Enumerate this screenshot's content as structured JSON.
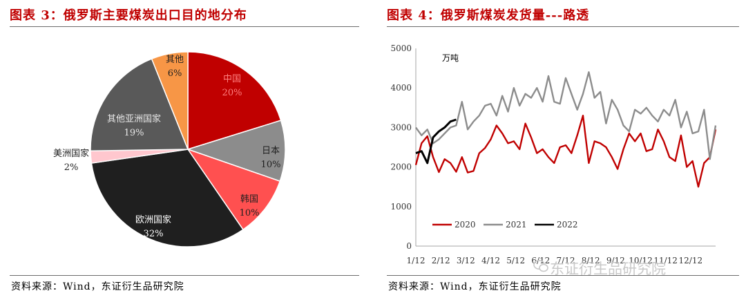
{
  "left": {
    "title": "图表 3：俄罗斯主要煤炭出口目的地分布",
    "source": "资料来源：Wind，东证衍生品研究院"
  },
  "right": {
    "title": "图表 4：俄罗斯煤炭发货量---路透",
    "source": "资料来源：Wind，东证衍生品研究院",
    "unit": "万吨"
  },
  "watermark": "东证衍生品研究院",
  "chart_data": [
    {
      "type": "pie",
      "slices": [
        {
          "label": "中国",
          "value": 20,
          "pct": "20%",
          "color": "#c00000"
        },
        {
          "label": "日本",
          "value": 10,
          "pct": "10%",
          "color": "#8c8c8c"
        },
        {
          "label": "韩国",
          "value": 10,
          "pct": "10%",
          "color": "#ff5050"
        },
        {
          "label": "欧洲国家",
          "value": 32,
          "pct": "32%",
          "color": "#1f1f1f"
        },
        {
          "label": "美洲国家",
          "value": 2,
          "pct": "2%",
          "color": "#ffc7ce"
        },
        {
          "label": "其他亚洲国家",
          "value": 19,
          "pct": "19%",
          "color": "#595959"
        },
        {
          "label": "其他",
          "value": 6,
          "pct": "6%",
          "color": "#f79646"
        }
      ]
    },
    {
      "type": "line",
      "ylabel": "万吨",
      "ylim": [
        0,
        5000
      ],
      "yticks": [
        0,
        1000,
        2000,
        3000,
        4000,
        5000
      ],
      "x_count": 53,
      "xtick_labels": [
        "1/12",
        "2/12",
        "3/12",
        "4/12",
        "5/12",
        "6/12",
        "7/12",
        "8/12",
        "9/12",
        "10/12",
        "11/12",
        "12/12"
      ],
      "legend_position": "bottom-left",
      "grid": false,
      "series": [
        {
          "name": "2020",
          "color": "#c00000",
          "values": [
            2050,
            2600,
            2780,
            2250,
            1870,
            2200,
            2100,
            1880,
            2250,
            1860,
            1900,
            2350,
            2480,
            2700,
            3050,
            2850,
            2600,
            2650,
            2450,
            3100,
            2750,
            2350,
            2450,
            2250,
            2100,
            2500,
            2550,
            2350,
            2800,
            3300,
            2100,
            2650,
            2600,
            2500,
            2250,
            1950,
            2450,
            2850,
            2650,
            2850,
            2400,
            2450,
            2950,
            2650,
            2250,
            2150,
            2800,
            2000,
            2150,
            1500,
            2100,
            2250,
            2950
          ]
        },
        {
          "name": "2021",
          "color": "#8c8c8c",
          "values": [
            3000,
            2800,
            2950,
            2600,
            2700,
            2850,
            3000,
            3050,
            3650,
            2950,
            3150,
            3300,
            3550,
            3600,
            3300,
            3800,
            3400,
            4000,
            3550,
            3850,
            3750,
            4000,
            3650,
            4300,
            3650,
            3600,
            4250,
            3850,
            3450,
            3850,
            4400,
            3750,
            3900,
            3100,
            3700,
            3450,
            3050,
            2900,
            3450,
            3350,
            3500,
            3300,
            3150,
            3450,
            3300,
            3700,
            3000,
            3400,
            2850,
            2900,
            3450,
            2200,
            3050
          ]
        },
        {
          "name": "2022",
          "color": "#000000",
          "values": [
            2350,
            2400,
            2100,
            2750,
            2900,
            3000,
            3150,
            3200
          ]
        }
      ]
    }
  ]
}
